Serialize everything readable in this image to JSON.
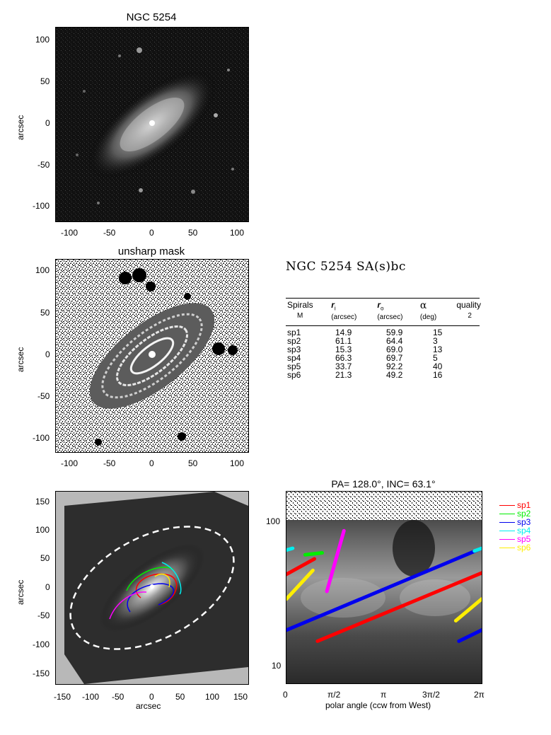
{
  "panel1": {
    "title": "NGC 5254",
    "ylabel": "arcsec",
    "yticks": [
      "100",
      "50",
      "0",
      "-50",
      "-100"
    ],
    "xticks": [
      "-100",
      "-50",
      "0",
      "50",
      "100"
    ]
  },
  "panel2": {
    "title": "unsharp mask",
    "ylabel": "arcsec",
    "yticks": [
      "100",
      "50",
      "0",
      "-50",
      "-100"
    ],
    "xticks": [
      "-100",
      "-50",
      "0",
      "50",
      "100"
    ]
  },
  "panel3": {
    "ylabel": "arcsec",
    "xlabel": "arcsec",
    "yticks": [
      "150",
      "100",
      "50",
      "0",
      "-50",
      "-100",
      "-150"
    ],
    "xticks": [
      "-150",
      "-100",
      "-50",
      "0",
      "50",
      "100",
      "150"
    ]
  },
  "heading": "NGC 5254  SA(s)bc",
  "table": {
    "col_spirals": "Spirals",
    "col_spirals_sub": "M",
    "col_ri": "r",
    "col_ri_sub": "i",
    "col_ri_unit": "(arcsec)",
    "col_ro": "r",
    "col_ro_sub": "o",
    "col_ro_unit": "(arcsec)",
    "col_alpha": "α",
    "col_alpha_unit": "(deg)",
    "col_quality": "quality",
    "col_quality_sub": "2",
    "rows": [
      {
        "name": "sp1",
        "ri": "14.9",
        "ro": "59.9",
        "alpha": "15"
      },
      {
        "name": "sp2",
        "ri": "61.1",
        "ro": "64.4",
        "alpha": "3"
      },
      {
        "name": "sp3",
        "ri": "15.3",
        "ro": "69.0",
        "alpha": "13"
      },
      {
        "name": "sp4",
        "ri": "66.3",
        "ro": "69.7",
        "alpha": "5"
      },
      {
        "name": "sp5",
        "ri": "33.7",
        "ro": "92.2",
        "alpha": "40"
      },
      {
        "name": "sp6",
        "ri": "21.3",
        "ro": "49.2",
        "alpha": "16"
      }
    ]
  },
  "chart_data": {
    "type": "line",
    "title": "PA= 128.0°, INC=  63.1°",
    "xlabel": "polar angle (ccw from West)",
    "ylabel": "",
    "xticks": [
      "0",
      "π/2",
      "π",
      "3π/2",
      "2π"
    ],
    "yticks": [
      "100",
      "10"
    ],
    "yscale": "log",
    "xlim": [
      0,
      6.2832
    ],
    "ylim": [
      7.5,
      175
    ],
    "series": [
      {
        "name": "sp1",
        "color": "#ff0000",
        "segments": [
          [
            [
              0.0,
              45
            ],
            [
              0.9,
              58
            ]
          ],
          [
            [
              1.0,
              15
            ],
            [
              6.2832,
              46
            ]
          ]
        ]
      },
      {
        "name": "sp2",
        "color": "#00ee00",
        "segments": [
          [
            [
              0.6,
              62
            ],
            [
              1.15,
              64
            ]
          ]
        ]
      },
      {
        "name": "sp3",
        "color": "#0000ee",
        "segments": [
          [
            [
              0.0,
              18
            ],
            [
              6.2832,
              69
            ]
          ],
          [
            [
              5.55,
              15
            ],
            [
              6.2832,
              18
            ]
          ]
        ]
      },
      {
        "name": "sp4",
        "color": "#00eeee",
        "segments": [
          [
            [
              0.0,
              67
            ],
            [
              0.2,
              69
            ]
          ],
          [
            [
              6.05,
              66
            ],
            [
              6.2832,
              69
            ]
          ]
        ]
      },
      {
        "name": "sp5",
        "color": "#ff00ff",
        "segments": [
          [
            [
              1.3,
              34
            ],
            [
              1.85,
              92
            ]
          ]
        ]
      },
      {
        "name": "sp6",
        "color": "#ffee00",
        "segments": [
          [
            [
              0.0,
              30
            ],
            [
              0.85,
              48
            ]
          ],
          [
            [
              5.45,
              21
            ],
            [
              6.2832,
              30
            ]
          ]
        ]
      }
    ],
    "legend": [
      "sp1",
      "sp2",
      "sp3",
      "sp4",
      "sp5",
      "sp6"
    ],
    "legend_position": "right"
  }
}
